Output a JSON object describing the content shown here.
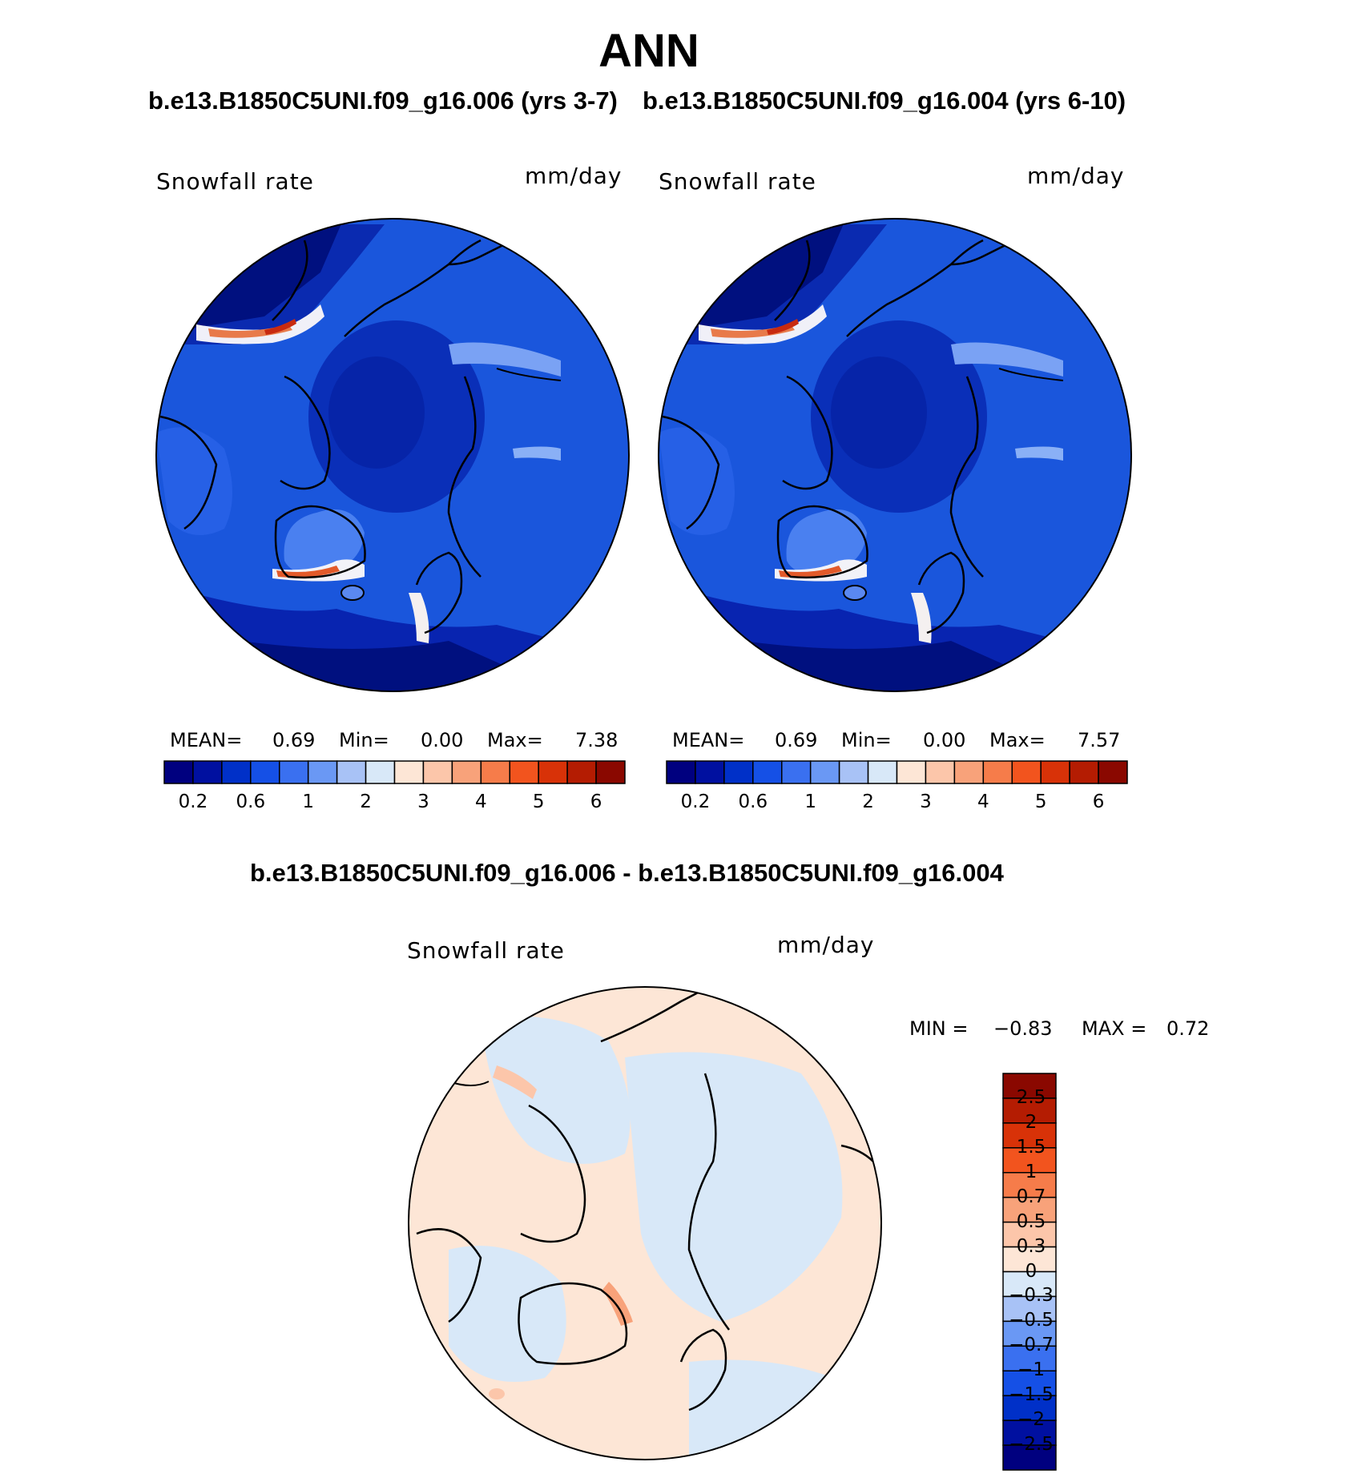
{
  "figure": {
    "title": "ANN",
    "subtitle_left": "b.e13.B1850C5UNI.f09_g16.006 (yrs 3-7)",
    "subtitle_right": "b.e13.B1850C5UNI.f09_g16.004 (yrs 6-10)",
    "diff_title": "b.e13.B1850C5UNI.f09_g16.006 - b.e13.B1850C5UNI.f09_g16.004"
  },
  "panels": [
    {
      "variable": "Snowfall rate",
      "units": "mm/day",
      "mean_label": "MEAN=",
      "mean": "0.69",
      "min_label": "Min=",
      "min": "0.00",
      "max_label": "Max=",
      "max": "7.38"
    },
    {
      "variable": "Snowfall rate",
      "units": "mm/day",
      "mean_label": "MEAN=",
      "mean": "0.69",
      "min_label": "Min=",
      "min": "0.00",
      "max_label": "Max=",
      "max": "7.57"
    }
  ],
  "colorbar": {
    "colors": [
      "#00007f",
      "#0010a0",
      "#0030c8",
      "#1550e6",
      "#3a70f0",
      "#6a98f4",
      "#a8c2f6",
      "#d8e8f8",
      "#fde6d6",
      "#fcc6aa",
      "#f8a27a",
      "#f67c4a",
      "#f2541e",
      "#d83208",
      "#b41c02",
      "#8a0800"
    ],
    "tick_labels": [
      "0.2",
      "0.6",
      "1",
      "2",
      "3",
      "4",
      "5",
      "6"
    ]
  },
  "diff_panel": {
    "variable": "Snowfall rate",
    "units": "mm/day",
    "min_label": "MIN =",
    "min": "−0.83",
    "max_label": "MAX =",
    "max": "0.72",
    "colors": [
      "#8a0800",
      "#b41c02",
      "#d83208",
      "#f2541e",
      "#f67c4a",
      "#f8a27a",
      "#fcc6aa",
      "#fde6d6",
      "#d8e8f8",
      "#a8c2f6",
      "#6a98f4",
      "#3a70f0",
      "#1550e6",
      "#0030c8",
      "#0010a0",
      "#00007f"
    ],
    "tick_labels": [
      "2.5",
      "2",
      "1.5",
      "1",
      "0.7",
      "0.5",
      "0.3",
      "0",
      "−0.3",
      "−0.5",
      "−0.7",
      "−1",
      "−1.5",
      "−2",
      "−2.5"
    ]
  }
}
